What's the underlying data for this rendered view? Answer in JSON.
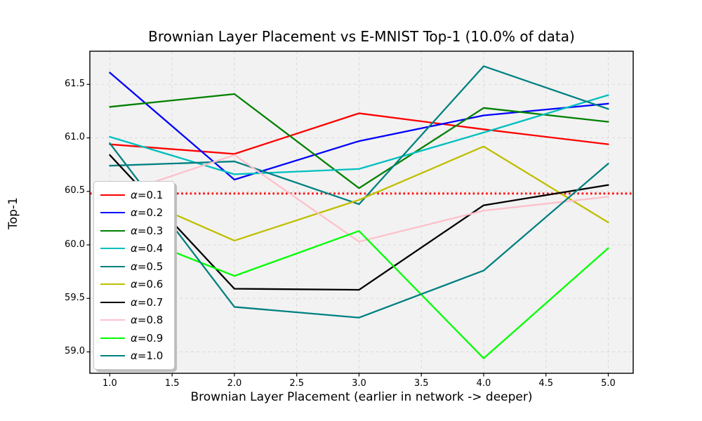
{
  "chart_data": {
    "type": "line",
    "title": "Brownian Layer Placement vs E-MNIST Top-1 (10.0% of data)",
    "xlabel": "Brownian Layer Placement (earlier in network -> deeper)",
    "ylabel": "Top-1",
    "x": [
      1,
      2,
      3,
      4,
      5
    ],
    "series": [
      {
        "name": "α=0.1",
        "color": "#ff0000",
        "values": [
          60.94,
          60.85,
          61.23,
          61.08,
          60.94
        ]
      },
      {
        "name": "α=0.2",
        "color": "#0000ff",
        "values": [
          61.61,
          60.61,
          60.97,
          61.21,
          61.32
        ]
      },
      {
        "name": "α=0.3",
        "color": "#008000",
        "values": [
          61.29,
          61.41,
          60.53,
          61.28,
          61.15
        ]
      },
      {
        "name": "α=0.4",
        "color": "#00bfbf",
        "values": [
          61.01,
          60.66,
          60.71,
          61.05,
          61.4
        ]
      },
      {
        "name": "α=0.5",
        "color": "#008080",
        "values": [
          60.74,
          60.78,
          60.38,
          61.67,
          61.27
        ]
      },
      {
        "name": "α=0.6",
        "color": "#bfbf00",
        "values": [
          60.55,
          60.04,
          60.42,
          60.92,
          60.21
        ]
      },
      {
        "name": "α=0.7",
        "color": "#000000",
        "values": [
          60.84,
          59.59,
          59.58,
          60.37,
          60.56
        ]
      },
      {
        "name": "α=0.8",
        "color": "#ffc0cb",
        "values": [
          60.45,
          60.84,
          60.03,
          60.32,
          60.45
        ]
      },
      {
        "name": "α=0.9",
        "color": "#00ff00",
        "values": [
          60.17,
          59.71,
          60.13,
          58.94,
          59.97
        ]
      },
      {
        "name": "α=1.0",
        "color": "#008080",
        "values": [
          60.95,
          59.42,
          59.32,
          59.76,
          60.76
        ]
      }
    ],
    "baseline": {
      "value": 60.48,
      "color": "#ff0000",
      "style": "dotted"
    },
    "xticks": [
      "1.0",
      "1.5",
      "2.0",
      "2.5",
      "3.0",
      "3.5",
      "4.0",
      "4.5",
      "5.0"
    ],
    "xtick_values": [
      1.0,
      1.5,
      2.0,
      2.5,
      3.0,
      3.5,
      4.0,
      4.5,
      5.0
    ],
    "yticks": [
      "59.0",
      "59.5",
      "60.0",
      "60.5",
      "61.0",
      "61.5"
    ],
    "ytick_values": [
      59.0,
      59.5,
      60.0,
      60.5,
      61.0,
      61.5
    ],
    "xlim": [
      0.84,
      5.2
    ],
    "ylim": [
      58.8,
      61.81
    ],
    "grid": true,
    "legend_position": "center left",
    "plot_bg": "#f2f2f2",
    "grid_color": "#d9d9d9",
    "line_width": 2.3
  }
}
